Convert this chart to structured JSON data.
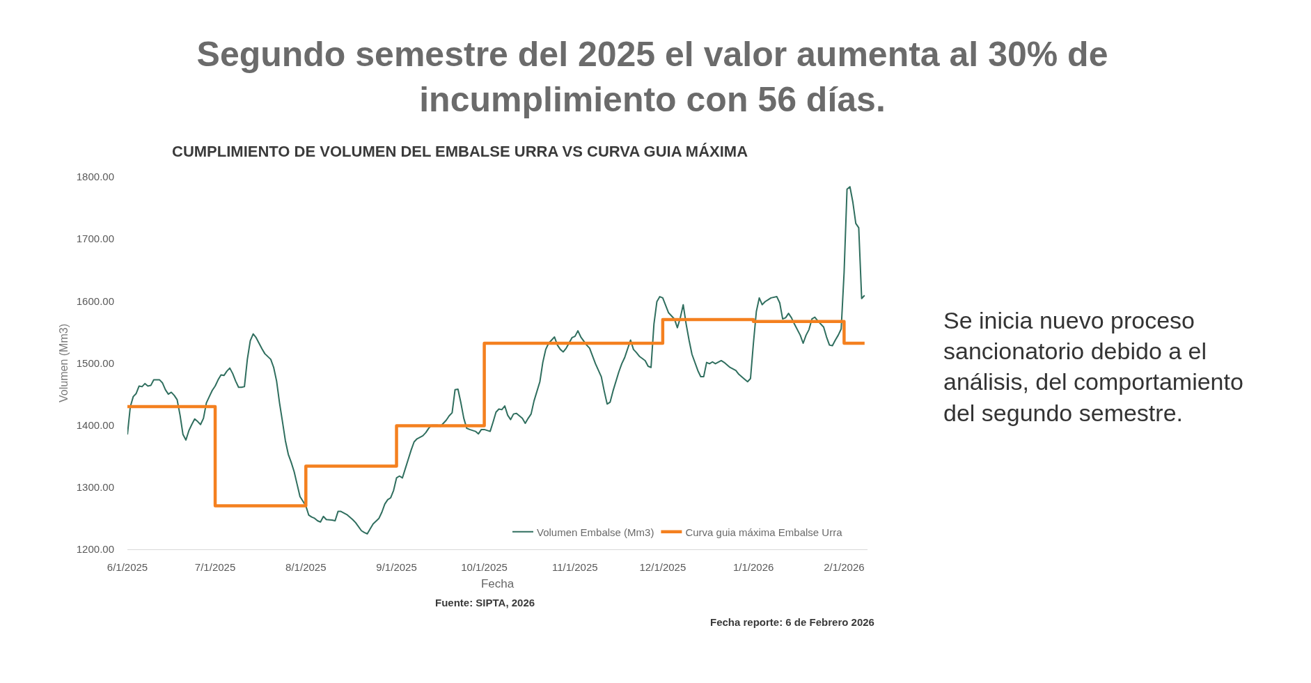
{
  "chart_data": {
    "type": "line",
    "title": "Segundo semestre del 2025 el valor aumenta al 30% de\nincumplimiento con 56 días.",
    "subtitle": "CUMPLIMIENTO DE VOLUMEN DEL EMBALSE URRA VS CURVA GUIA MÁXIMA",
    "xlabel": "Fecha",
    "ylabel": "Volumen (Mm3)",
    "annotations": [
      "Se inicia nuevo proceso\nsancionatorio debido a el\nanálisis, del comportamiento\ndel segundo semestre.",
      "Fuente: SIPTA, 2026",
      "Fecha reporte: 6 de Febrero 2026"
    ],
    "xlim": [
      "2025-06-01",
      "2026-02-09"
    ],
    "xticks": [
      {
        "value": "2025-06-01",
        "label": "6/1/2025"
      },
      {
        "value": "2025-07-01",
        "label": "7/1/2025"
      },
      {
        "value": "2025-08-01",
        "label": "8/1/2025"
      },
      {
        "value": "2025-09-01",
        "label": "9/1/2025"
      },
      {
        "value": "2025-10-01",
        "label": "10/1/2025"
      },
      {
        "value": "2025-11-01",
        "label": "11/1/2025"
      },
      {
        "value": "2025-12-01",
        "label": "12/1/2025"
      },
      {
        "value": "2026-01-01",
        "label": "1/1/2026"
      },
      {
        "value": "2026-02-01",
        "label": "2/1/2026"
      }
    ],
    "ylim": [
      1200,
      1800
    ],
    "yticks": [
      {
        "value": 1200,
        "label": "1200.00"
      },
      {
        "value": 1300,
        "label": "1300.00"
      },
      {
        "value": 1400,
        "label": "1400.00"
      },
      {
        "value": 1500,
        "label": "1500.00"
      },
      {
        "value": 1600,
        "label": "1600.00"
      },
      {
        "value": 1700,
        "label": "1700.00"
      },
      {
        "value": 1800,
        "label": "1800.00"
      }
    ],
    "legend": "bottom right",
    "series": [
      {
        "name": "Volumen Embalse (Mm3)",
        "color": "#2f6e5e",
        "x": [
          "2025-06-01",
          "2025-06-02",
          "2025-06-03",
          "2025-06-04",
          "2025-06-05",
          "2025-06-06",
          "2025-06-07",
          "2025-06-08",
          "2025-06-09",
          "2025-06-10",
          "2025-06-12",
          "2025-06-13",
          "2025-06-14",
          "2025-06-15",
          "2025-06-16",
          "2025-06-17",
          "2025-06-18",
          "2025-06-19",
          "2025-06-20",
          "2025-06-21",
          "2025-06-22",
          "2025-06-23",
          "2025-06-24",
          "2025-06-25",
          "2025-06-26",
          "2025-06-27",
          "2025-06-28",
          "2025-06-29",
          "2025-06-30",
          "2025-07-01",
          "2025-07-02",
          "2025-07-03",
          "2025-07-04",
          "2025-07-05",
          "2025-07-06",
          "2025-07-07",
          "2025-07-08",
          "2025-07-09",
          "2025-07-10",
          "2025-07-11",
          "2025-07-12",
          "2025-07-13",
          "2025-07-14",
          "2025-07-15",
          "2025-07-16",
          "2025-07-17",
          "2025-07-18",
          "2025-07-20",
          "2025-07-21",
          "2025-07-22",
          "2025-07-23",
          "2025-07-24",
          "2025-07-25",
          "2025-07-26",
          "2025-07-27",
          "2025-07-28",
          "2025-07-29",
          "2025-07-30",
          "2025-08-01",
          "2025-08-02",
          "2025-08-03",
          "2025-08-04",
          "2025-08-05",
          "2025-08-06",
          "2025-08-07",
          "2025-08-08",
          "2025-08-10",
          "2025-08-11",
          "2025-08-12",
          "2025-08-13",
          "2025-08-15",
          "2025-08-17",
          "2025-08-18",
          "2025-08-20",
          "2025-08-21",
          "2025-08-22",
          "2025-08-23",
          "2025-08-24",
          "2025-08-26",
          "2025-08-27",
          "2025-08-28",
          "2025-08-29",
          "2025-08-30",
          "2025-08-31",
          "2025-09-01",
          "2025-09-02",
          "2025-09-03",
          "2025-09-04",
          "2025-09-05",
          "2025-09-06",
          "2025-09-07",
          "2025-09-08",
          "2025-09-10",
          "2025-09-11",
          "2025-09-12",
          "2025-09-13",
          "2025-09-15",
          "2025-09-16",
          "2025-09-18",
          "2025-09-19",
          "2025-09-20",
          "2025-09-21",
          "2025-09-22",
          "2025-09-23",
          "2025-09-24",
          "2025-09-25",
          "2025-09-26",
          "2025-09-28",
          "2025-09-29",
          "2025-09-30",
          "2025-10-01",
          "2025-10-03",
          "2025-10-04",
          "2025-10-05",
          "2025-10-06",
          "2025-10-07",
          "2025-10-08",
          "2025-10-09",
          "2025-10-10",
          "2025-10-11",
          "2025-10-12",
          "2025-10-14",
          "2025-10-15",
          "2025-10-16",
          "2025-10-17",
          "2025-10-18",
          "2025-10-20",
          "2025-10-21",
          "2025-10-22",
          "2025-10-23",
          "2025-10-25",
          "2025-10-26",
          "2025-10-27",
          "2025-10-28",
          "2025-10-29",
          "2025-10-31",
          "2025-11-01",
          "2025-11-02",
          "2025-11-03",
          "2025-11-05",
          "2025-11-06",
          "2025-11-08",
          "2025-11-10",
          "2025-11-11",
          "2025-11-12",
          "2025-11-13",
          "2025-11-14",
          "2025-11-16",
          "2025-11-17",
          "2025-11-18",
          "2025-11-20",
          "2025-11-21",
          "2025-11-22",
          "2025-11-23",
          "2025-11-25",
          "2025-11-26",
          "2025-11-27",
          "2025-11-28",
          "2025-11-29",
          "2025-11-30",
          "2025-12-01",
          "2025-12-03",
          "2025-12-04",
          "2025-12-05",
          "2025-12-06",
          "2025-12-07",
          "2025-12-08",
          "2025-12-09",
          "2025-12-10",
          "2025-12-11",
          "2025-12-13",
          "2025-12-14",
          "2025-12-15",
          "2025-12-16",
          "2025-12-17",
          "2025-12-18",
          "2025-12-19",
          "2025-12-21",
          "2025-12-22",
          "2025-12-24",
          "2025-12-26",
          "2025-12-27",
          "2025-12-29",
          "2025-12-30",
          "2025-12-31",
          "2026-01-01",
          "2026-01-02",
          "2026-01-03",
          "2026-01-04",
          "2026-01-05",
          "2026-01-06",
          "2026-01-07",
          "2026-01-09",
          "2026-01-10",
          "2026-01-11",
          "2026-01-12",
          "2026-01-13",
          "2026-01-14",
          "2026-01-15",
          "2026-01-17",
          "2026-01-18",
          "2026-01-19",
          "2026-01-20",
          "2026-01-21",
          "2026-01-22",
          "2026-01-23",
          "2026-01-25",
          "2026-01-26",
          "2026-01-27",
          "2026-01-28",
          "2026-01-29",
          "2026-01-30",
          "2026-01-31",
          "2026-02-01",
          "2026-02-02",
          "2026-02-03",
          "2026-02-04",
          "2026-02-05",
          "2026-02-06",
          "2026-02-07",
          "2026-02-08"
        ],
        "values": [
          1385,
          1430,
          1446,
          1451,
          1463,
          1462,
          1467,
          1463,
          1464,
          1473,
          1473,
          1468,
          1457,
          1450,
          1453,
          1448,
          1441,
          1416,
          1385,
          1376,
          1391,
          1401,
          1410,
          1406,
          1401,
          1411,
          1436,
          1446,
          1456,
          1463,
          1473,
          1481,
          1480,
          1487,
          1492,
          1483,
          1471,
          1461,
          1461,
          1462,
          1506,
          1536,
          1547,
          1541,
          1532,
          1523,
          1515,
          1506,
          1493,
          1471,
          1436,
          1406,
          1375,
          1353,
          1340,
          1325,
          1305,
          1285,
          1270,
          1255,
          1252,
          1250,
          1246,
          1244,
          1253,
          1248,
          1247,
          1246,
          1261,
          1261,
          1256,
          1248,
          1243,
          1230,
          1227,
          1225,
          1233,
          1241,
          1250,
          1260,
          1273,
          1280,
          1283,
          1295,
          1315,
          1318,
          1315,
          1330,
          1345,
          1360,
          1373,
          1378,
          1383,
          1388,
          1395,
          1400,
          1400,
          1398,
          1408,
          1415,
          1420,
          1457,
          1458,
          1436,
          1411,
          1395,
          1393,
          1390,
          1386,
          1393,
          1393,
          1390,
          1405,
          1421,
          1426,
          1425,
          1431,
          1416,
          1409,
          1418,
          1419,
          1411,
          1403,
          1411,
          1418,
          1439,
          1470,
          1501,
          1522,
          1532,
          1542,
          1529,
          1522,
          1518,
          1524,
          1541,
          1543,
          1552,
          1542,
          1529,
          1524,
          1499,
          1478,
          1455,
          1434,
          1437,
          1455,
          1486,
          1499,
          1509,
          1537,
          1522,
          1517,
          1511,
          1504,
          1495,
          1493,
          1563,
          1599,
          1607,
          1605,
          1581,
          1576,
          1571,
          1557,
          1573,
          1594,
          1563,
          1537,
          1514,
          1488,
          1478,
          1478,
          1501,
          1499,
          1502,
          1499,
          1504,
          1501,
          1493,
          1488,
          1482,
          1474,
          1470,
          1475,
          1532,
          1583,
          1605,
          1594,
          1599,
          1602,
          1605,
          1607,
          1597,
          1571,
          1573,
          1580,
          1573,
          1563,
          1545,
          1532,
          1545,
          1554,
          1571,
          1574,
          1568,
          1558,
          1542,
          1529,
          1528,
          1537,
          1545,
          1555,
          1646,
          1780,
          1784,
          1759,
          1725,
          1718,
          1604,
          1609
        ]
      },
      {
        "name": "Curva guia máxima Embalse Urra",
        "type": "step",
        "color": "#f4801f",
        "x": [
          "2025-06-01",
          "2025-07-01",
          "2025-08-01",
          "2025-09-01",
          "2025-10-01",
          "2025-12-01",
          "2026-01-01",
          "2026-02-01",
          "2026-02-08"
        ],
        "values": [
          1430,
          1270,
          1334,
          1399,
          1532,
          1570,
          1567,
          1532,
          1532
        ]
      }
    ]
  }
}
